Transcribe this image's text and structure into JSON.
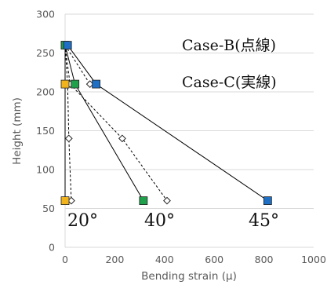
{
  "chart_data": {
    "type": "scatter",
    "title": "",
    "xlabel": "Bending strain (μ)",
    "ylabel": "Height (mm)",
    "xlim": [
      0,
      1000
    ],
    "ylim": [
      0,
      300
    ],
    "xticks": [
      "0",
      "200",
      "400",
      "600",
      "800",
      "1000"
    ],
    "yticks": [
      "0",
      "50",
      "100",
      "150",
      "200",
      "250",
      "300"
    ],
    "grid": "horizontal",
    "legend": "none",
    "colors": {
      "deg20": "#f2b41c",
      "deg40": "#1fa04b",
      "deg45": "#1f6fc4",
      "caseB_marker": "#ffffff",
      "line": "#000000",
      "grid": "#d9d9d9"
    },
    "series": [
      {
        "case": "Case-C",
        "style": "solid",
        "marker": "square",
        "angle": "20°",
        "points": [
          [
            0,
            260
          ],
          [
            0,
            210
          ],
          [
            0,
            60
          ]
        ]
      },
      {
        "case": "Case-C",
        "style": "solid",
        "marker": "square",
        "angle": "40°",
        "points": [
          [
            0,
            260
          ],
          [
            40,
            210
          ],
          [
            315,
            60
          ]
        ]
      },
      {
        "case": "Case-C",
        "style": "solid",
        "marker": "square",
        "angle": "45°",
        "points": [
          [
            10,
            260
          ],
          [
            125,
            210
          ],
          [
            815,
            60
          ]
        ]
      },
      {
        "case": "Case-B",
        "style": "dotted",
        "marker": "diamond",
        "angle": "20°",
        "points": [
          [
            0,
            260
          ],
          [
            10,
            210
          ],
          [
            15,
            140
          ],
          [
            25,
            60
          ]
        ]
      },
      {
        "case": "Case-B",
        "style": "dotted",
        "marker": "diamond",
        "angle": "40°",
        "points": [
          [
            0,
            260
          ],
          [
            20,
            210
          ],
          [
            230,
            140
          ],
          [
            410,
            60
          ]
        ]
      },
      {
        "case": "Case-B",
        "style": "dotted",
        "marker": "diamond",
        "angle": "45°",
        "points": [
          [
            0,
            260
          ],
          [
            100,
            210
          ]
        ]
      }
    ],
    "annotations": {
      "case_b": "Case-B(点線)",
      "case_c": "Case-C(実線)",
      "angle_20": "20°",
      "angle_40": "40°",
      "angle_45": "45°"
    }
  }
}
